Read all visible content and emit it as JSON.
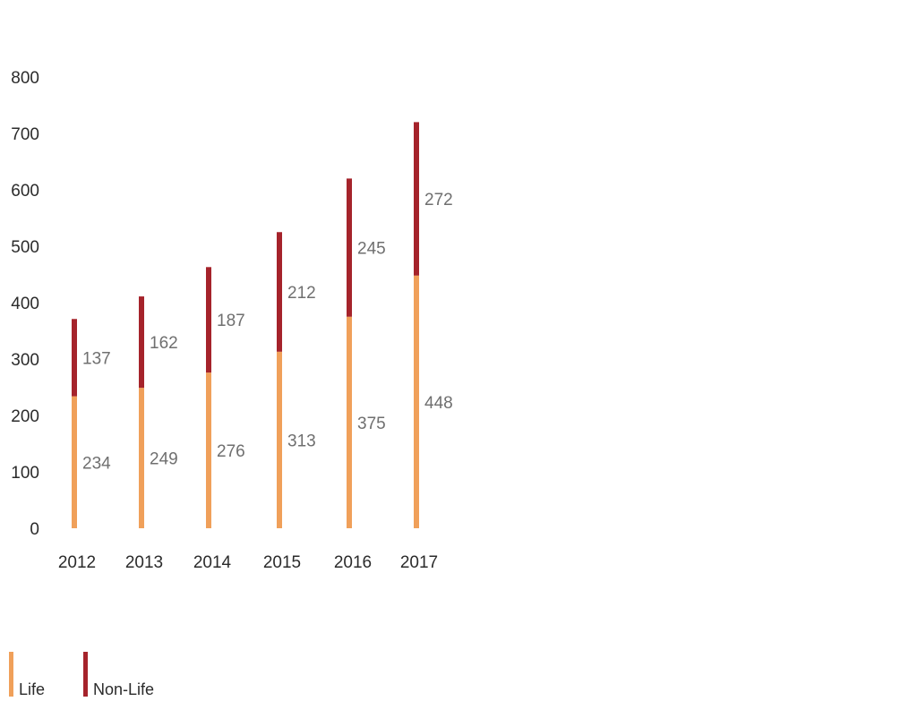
{
  "chart_data": {
    "type": "bar",
    "stacked": true,
    "categories": [
      "2012",
      "2013",
      "2014",
      "2015",
      "2016",
      "2017"
    ],
    "series": [
      {
        "name": "Life",
        "color": "#f0a05a",
        "values": [
          234,
          249,
          276,
          313,
          375,
          448
        ]
      },
      {
        "name": "Non-Life",
        "color": "#a5232b",
        "values": [
          137,
          162,
          187,
          212,
          245,
          272
        ]
      }
    ],
    "ylim": [
      0,
      800
    ],
    "yticks": [
      0,
      100,
      200,
      300,
      400,
      500,
      600,
      700,
      800
    ],
    "grid": false,
    "legend_position": "bottom-left",
    "xlabel": "",
    "ylabel": "",
    "title": ""
  }
}
